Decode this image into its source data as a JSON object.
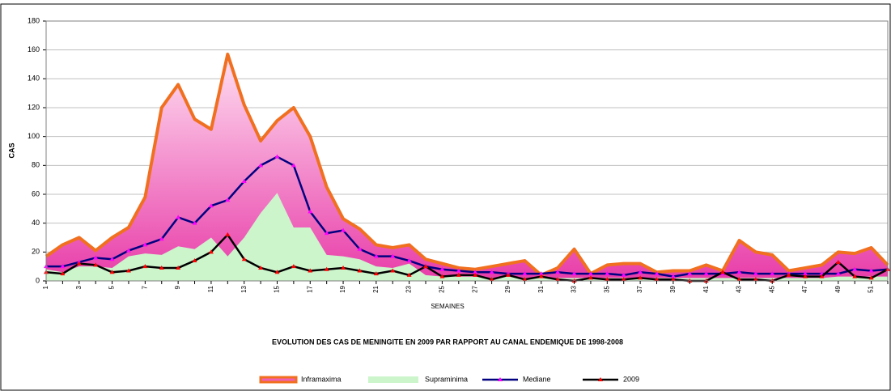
{
  "chart_data": {
    "type": "line",
    "title": "EVOLUTION DES CAS DE MENINGITE EN 2009 PAR RAPPORT AU CANAL ENDEMIQUE DE 1998-2008",
    "x_label": "SEMAINES",
    "y_label": "CAS",
    "categories": [
      "1",
      null,
      "3",
      null,
      "5",
      null,
      "7",
      null,
      "9",
      null,
      "11",
      null,
      "13",
      null,
      "15",
      null,
      "17",
      null,
      "19",
      null,
      "21",
      null,
      "23",
      null,
      "25",
      null,
      "27",
      null,
      "29",
      null,
      "31",
      null,
      "33",
      null,
      "35",
      null,
      "37",
      null,
      "39",
      null,
      "41",
      null,
      "43",
      null,
      "45",
      null,
      "47",
      null,
      "49",
      null,
      "51",
      null
    ],
    "ylim": [
      0,
      180
    ],
    "yticks": [
      0,
      20,
      40,
      60,
      80,
      100,
      120,
      140,
      160,
      180
    ],
    "grid": true,
    "legend": "bottom",
    "series": [
      {
        "name": "Inframaxima",
        "kind": "area",
        "color": "#f07020",
        "fill": "#f060b8",
        "values": [
          17,
          25,
          30,
          21,
          30,
          37,
          58,
          120,
          136,
          112,
          105,
          157,
          122,
          97,
          111,
          120,
          100,
          65,
          43,
          36,
          25,
          23,
          25,
          15,
          12,
          9,
          8,
          10,
          12,
          14,
          4,
          9,
          22,
          5,
          11,
          12,
          12,
          6,
          7,
          7,
          11,
          7,
          28,
          20,
          18,
          7,
          9,
          11,
          20,
          19,
          23,
          11
        ]
      },
      {
        "name": "Supraminima",
        "kind": "area",
        "color": "#ccf5cc",
        "fill": "#ccf5cc",
        "values": [
          8,
          6,
          10,
          10,
          9,
          17,
          19,
          18,
          24,
          22,
          30,
          17,
          30,
          47,
          61,
          37,
          37,
          18,
          17,
          15,
          10,
          9,
          12,
          4,
          3,
          3,
          3,
          2,
          3,
          2,
          2,
          2,
          2,
          2,
          2,
          2,
          2,
          2,
          2,
          2,
          2,
          2,
          2,
          2,
          2,
          2,
          2,
          2,
          3,
          3,
          3,
          3
        ]
      },
      {
        "name": "Mediane",
        "kind": "line",
        "color": "#000080",
        "marker": "#ff00ff",
        "values": [
          10,
          10,
          13,
          16,
          15,
          21,
          25,
          29,
          44,
          40,
          52,
          56,
          69,
          80,
          86,
          80,
          48,
          33,
          35,
          22,
          17,
          17,
          14,
          10,
          8,
          7,
          6,
          6,
          5,
          5,
          5,
          6,
          5,
          5,
          5,
          4,
          6,
          5,
          3,
          5,
          5,
          5,
          6,
          5,
          5,
          5,
          5,
          5,
          5,
          8,
          7,
          8
        ]
      },
      {
        "name": "2009",
        "kind": "line",
        "color": "#000000",
        "marker": "#ff0000",
        "values": [
          6,
          5,
          12,
          11,
          6,
          7,
          10,
          9,
          9,
          14,
          20,
          32,
          15,
          9,
          6,
          10,
          7,
          8,
          9,
          7,
          5,
          7,
          4,
          10,
          3,
          4,
          4,
          1,
          4,
          1,
          3,
          1,
          0,
          2,
          1,
          1,
          2,
          1,
          1,
          0,
          0,
          6,
          1,
          1,
          0,
          4,
          3,
          3,
          13,
          3,
          2,
          8
        ]
      }
    ]
  }
}
